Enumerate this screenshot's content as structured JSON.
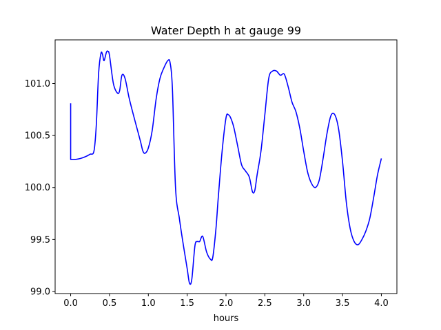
{
  "chart_data": {
    "type": "line",
    "title": "Water Depth h at gauge 99",
    "xlabel": "hours",
    "ylabel": "",
    "xlim": [
      -0.2,
      4.2
    ],
    "ylim": [
      98.98,
      101.42
    ],
    "xticks": [
      0.0,
      0.5,
      1.0,
      1.5,
      2.0,
      2.5,
      3.0,
      3.5,
      4.0
    ],
    "xtick_labels": [
      "0.0",
      "0.5",
      "1.0",
      "1.5",
      "2.0",
      "2.5",
      "3.0",
      "3.5",
      "4.0"
    ],
    "yticks": [
      99.0,
      99.5,
      100.0,
      100.5,
      101.0
    ],
    "ytick_labels": [
      "99.0",
      "99.5",
      "100.0",
      "100.5",
      "101.0"
    ],
    "grid": false,
    "series": [
      {
        "color": "#0000ff",
        "x": [
          0.0,
          0.0,
          0.05,
          0.1,
          0.15,
          0.2,
          0.25,
          0.3,
          0.33,
          0.36,
          0.39,
          0.41,
          0.43,
          0.46,
          0.48,
          0.5,
          0.55,
          0.6,
          0.63,
          0.66,
          0.7,
          0.75,
          0.8,
          0.85,
          0.9,
          0.93,
          0.96,
          1.0,
          1.05,
          1.1,
          1.15,
          1.2,
          1.25,
          1.28,
          1.31,
          1.35,
          1.4,
          1.45,
          1.5,
          1.53,
          1.56,
          1.6,
          1.63,
          1.66,
          1.7,
          1.75,
          1.8,
          1.83,
          1.87,
          1.9,
          1.95,
          2.0,
          2.03,
          2.06,
          2.1,
          2.15,
          2.2,
          2.25,
          2.3,
          2.34,
          2.37,
          2.4,
          2.45,
          2.5,
          2.55,
          2.6,
          2.65,
          2.7,
          2.75,
          2.8,
          2.85,
          2.9,
          2.95,
          3.0,
          3.05,
          3.1,
          3.15,
          3.2,
          3.25,
          3.3,
          3.35,
          3.4,
          3.45,
          3.5,
          3.55,
          3.6,
          3.65,
          3.7,
          3.75,
          3.8,
          3.85,
          3.9,
          3.95,
          4.0
        ],
        "y": [
          100.81,
          100.27,
          100.27,
          100.275,
          100.285,
          100.3,
          100.32,
          100.35,
          100.6,
          101.1,
          101.29,
          101.28,
          101.22,
          101.3,
          101.31,
          101.27,
          101.0,
          100.91,
          100.93,
          101.08,
          101.05,
          100.87,
          100.72,
          100.58,
          100.44,
          100.35,
          100.33,
          100.38,
          100.55,
          100.85,
          101.05,
          101.15,
          101.22,
          101.2,
          100.95,
          100.0,
          99.7,
          99.45,
          99.22,
          99.08,
          99.12,
          99.44,
          99.48,
          99.48,
          99.53,
          99.38,
          99.31,
          99.33,
          99.6,
          99.9,
          100.35,
          100.67,
          100.7,
          100.67,
          100.58,
          100.4,
          100.22,
          100.16,
          100.1,
          99.96,
          99.97,
          100.12,
          100.35,
          100.7,
          101.05,
          101.12,
          101.12,
          101.08,
          101.09,
          100.97,
          100.82,
          100.73,
          100.57,
          100.35,
          100.15,
          100.04,
          100.0,
          100.07,
          100.28,
          100.52,
          100.69,
          100.7,
          100.56,
          100.25,
          99.85,
          99.6,
          99.48,
          99.45,
          99.5,
          99.58,
          99.7,
          99.9,
          100.12,
          100.28
        ]
      }
    ]
  }
}
